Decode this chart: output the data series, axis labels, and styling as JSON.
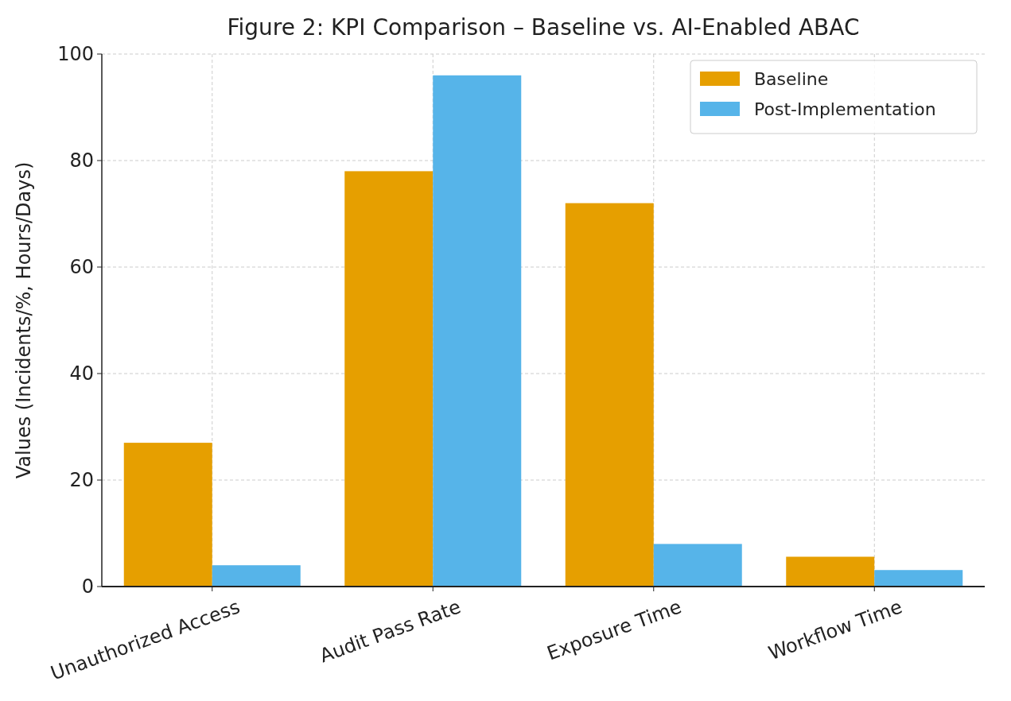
{
  "chart_data": {
    "type": "bar",
    "title": "Figure 2: KPI Comparison – Baseline vs. AI-Enabled ABAC",
    "ylabel": "Values (Incidents/%, Hours/Days)",
    "categories": [
      "Unauthorized Access",
      "Audit Pass Rate",
      "Exposure Time",
      "Workflow Time"
    ],
    "series": [
      {
        "name": "Baseline",
        "color": "#e69f00",
        "values": [
          27,
          78,
          72,
          5.6
        ]
      },
      {
        "name": "Post-Implementation",
        "color": "#56b4e9",
        "values": [
          4,
          96,
          8,
          3.1
        ]
      }
    ],
    "ylim": [
      0,
      100
    ],
    "yticks": [
      0,
      20,
      40,
      60,
      80,
      100
    ],
    "grid": true,
    "legend": "top right"
  }
}
